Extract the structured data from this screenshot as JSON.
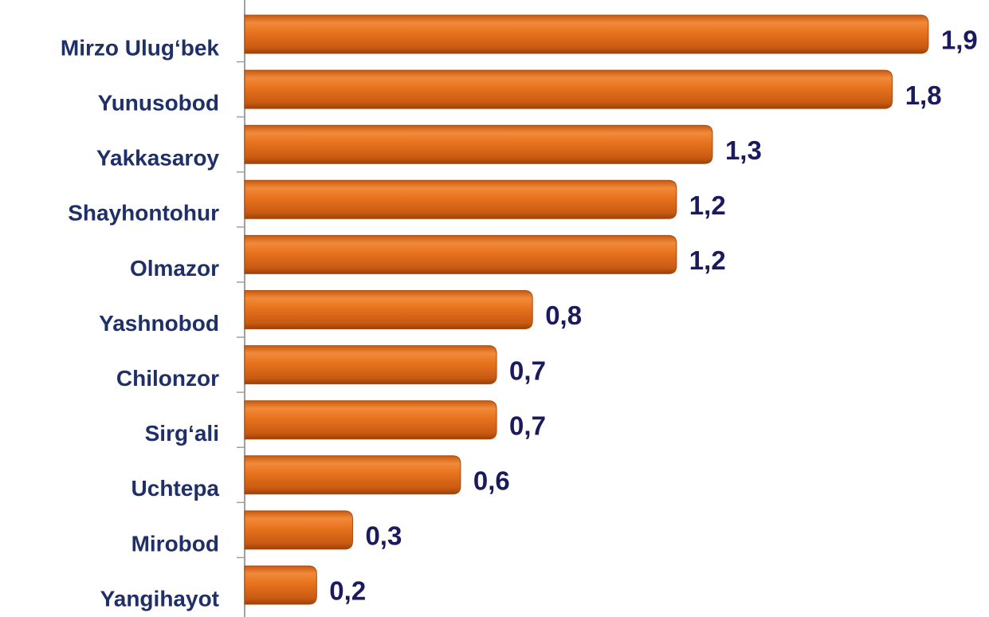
{
  "chart_data": {
    "type": "barh",
    "categories": [
      "Mirzo Ulug‘bek",
      "Yunusobod",
      "Yakkasaroy",
      "Shayhontohur",
      "Olmazor",
      "Yashnobod",
      "Chilonzor",
      "Sirg‘ali",
      "Uchtepa",
      "Mirobod",
      "Yangihayot"
    ],
    "values": [
      1.9,
      1.8,
      1.3,
      1.2,
      1.2,
      0.8,
      0.7,
      0.7,
      0.6,
      0.3,
      0.2
    ],
    "value_labels": [
      "1,9",
      "1,8",
      "1,3",
      "1,2",
      "1,2",
      "0,8",
      "0,7",
      "0,7",
      "0,6",
      "0,3",
      "0,2"
    ],
    "color": "#e8731e",
    "xlim": [
      0,
      2
    ]
  }
}
